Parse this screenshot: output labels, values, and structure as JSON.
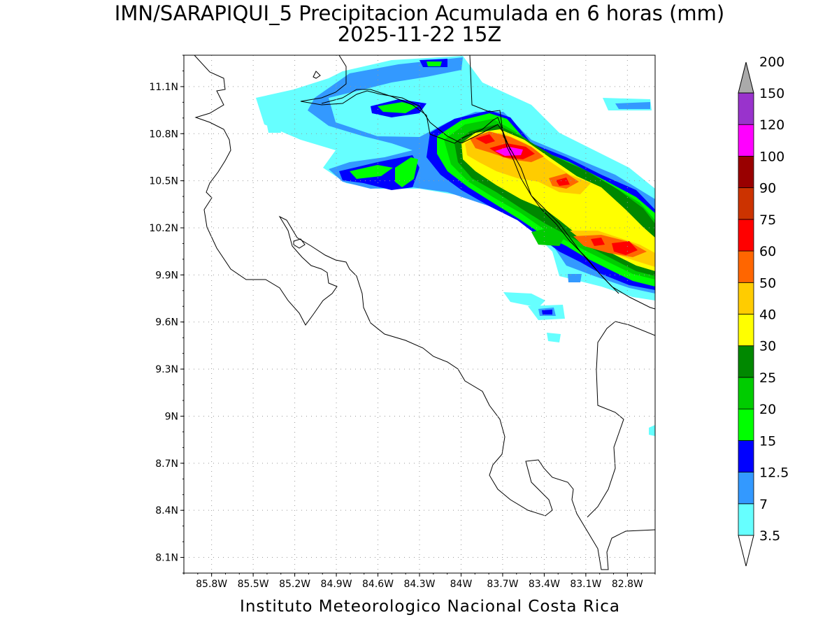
{
  "title": {
    "line1": "IMN/SARAPIQUI_5 Precipitacion Acumulada en 6 horas (mm)",
    "line2": "2025-11-22 15Z"
  },
  "footer": "Instituto Meteorologico Nacional Costa Rica",
  "map": {
    "lon_range": [
      -86.0,
      -82.6
    ],
    "lat_range": [
      8.0,
      11.3
    ],
    "lon_ticks": [
      {
        "value": -85.8,
        "label": "85.8W"
      },
      {
        "value": -85.5,
        "label": "85.5W"
      },
      {
        "value": -85.2,
        "label": "85.2W"
      },
      {
        "value": -84.9,
        "label": "84.9W"
      },
      {
        "value": -84.6,
        "label": "84.6W"
      },
      {
        "value": -84.3,
        "label": "84.3W"
      },
      {
        "value": -84.0,
        "label": "84W"
      },
      {
        "value": -83.7,
        "label": "83.7W"
      },
      {
        "value": -83.4,
        "label": "83.4W"
      },
      {
        "value": -83.1,
        "label": "83.1W"
      },
      {
        "value": -82.8,
        "label": "82.8W"
      }
    ],
    "lat_ticks": [
      {
        "value": 8.1,
        "label": "8.1N"
      },
      {
        "value": 8.4,
        "label": "8.4N"
      },
      {
        "value": 8.7,
        "label": "8.7N"
      },
      {
        "value": 9.0,
        "label": "9N"
      },
      {
        "value": 9.3,
        "label": "9.3N"
      },
      {
        "value": 9.6,
        "label": "9.6N"
      },
      {
        "value": 9.9,
        "label": "9.9N"
      },
      {
        "value": 10.2,
        "label": "10.2N"
      },
      {
        "value": 10.5,
        "label": "10.5N"
      },
      {
        "value": 10.8,
        "label": "10.8N"
      },
      {
        "value": 11.1,
        "label": "11.1N"
      }
    ],
    "grid": true,
    "coastline_color": "#000000"
  },
  "colorbar": {
    "levels": [
      "3.5",
      "7",
      "12.5",
      "15",
      "20",
      "25",
      "30",
      "40",
      "50",
      "60",
      "75",
      "90",
      "100",
      "120",
      "150",
      "200"
    ],
    "colors": [
      "#66ffff",
      "#3399ff",
      "#0000ff",
      "#00ff00",
      "#00cc00",
      "#008800",
      "#ffff00",
      "#ffcc00",
      "#ff6600",
      "#ff0000",
      "#cc3300",
      "#990000",
      "#ff00ff",
      "#9933cc",
      "#f4f4f4",
      "#aaaaaa"
    ],
    "extends": "both"
  }
}
